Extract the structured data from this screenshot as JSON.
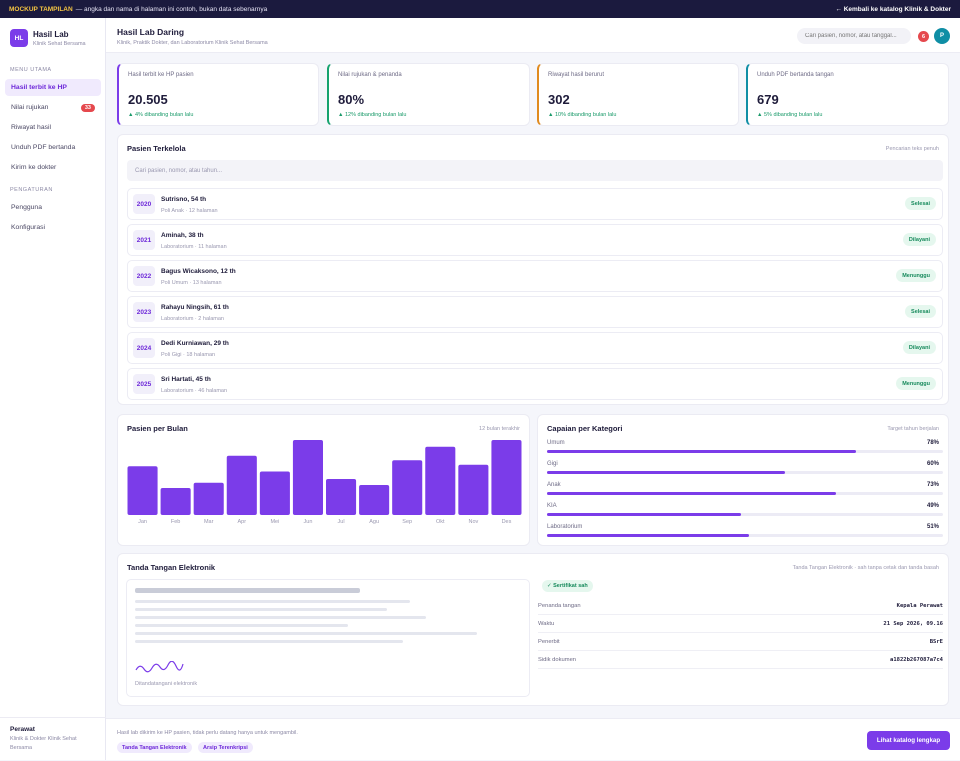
{
  "banner": {
    "tag": "MOCKUP TAMPILAN",
    "text": "— angka dan nama di halaman ini contoh, bukan data sebenarnya",
    "back": "← Kembali ke katalog Klinik & Dokter"
  },
  "brand": {
    "logo": "HL",
    "title": "Hasil Lab",
    "subtitle": "Klinik Sehat Bersama"
  },
  "sidebar": {
    "section_main": "MENU UTAMA",
    "items": [
      {
        "label": "Hasil terbit ke HP",
        "active": true
      },
      {
        "label": "Nilai rujukan",
        "badge": "33"
      },
      {
        "label": "Riwayat hasil"
      },
      {
        "label": "Unduh PDF bertanda"
      },
      {
        "label": "Kirim ke dokter"
      }
    ],
    "section_settings": "PENGATURAN",
    "settings": [
      {
        "label": "Pengguna"
      },
      {
        "label": "Konfigurasi"
      }
    ],
    "footer": {
      "role": "Perawat",
      "org": "Klinik & Dokter Klinik Sehat Bersama"
    }
  },
  "header": {
    "title": "Hasil Lab Daring",
    "subtitle": "Klinik, Praktik Dokter, dan Laboratorium Klinik Sehat Bersama",
    "search_placeholder": "Cari pasien, nomor, atau tanggal...",
    "notif_count": "6",
    "avatar": "P"
  },
  "stats": [
    {
      "label": "Hasil terbit ke HP pasien",
      "value": "20.505",
      "delta": "▲ 4% dibanding bulan lalu",
      "accent": "#7b3ce9"
    },
    {
      "label": "Nilai rujukan & penanda",
      "value": "80%",
      "delta": "▲ 12% dibanding bulan lalu",
      "accent": "#16a36e"
    },
    {
      "label": "Riwayat hasil berurut",
      "value": "302",
      "delta": "▲ 10% dibanding bulan lalu",
      "accent": "#e08a1e"
    },
    {
      "label": "Unduh PDF bertanda tangan",
      "value": "679",
      "delta": "▲ 5% dibanding bulan lalu",
      "accent": "#0f8ea5"
    }
  ],
  "patients": {
    "title": "Pasien Terkelola",
    "note": "Pencarian teks penuh",
    "search_placeholder": "Cari pasien, nomor, atau tahun...",
    "rows": [
      {
        "year": "2020",
        "name": "Sutrisno, 54 th",
        "meta": "Poli Anak · 12 halaman",
        "status": "Selesai"
      },
      {
        "year": "2021",
        "name": "Aminah, 38 th",
        "meta": "Laboratorium · 11 halaman",
        "status": "Dilayani"
      },
      {
        "year": "2022",
        "name": "Bagus Wicaksono, 12 th",
        "meta": "Poli Umum · 13 halaman",
        "status": "Menunggu"
      },
      {
        "year": "2023",
        "name": "Rahayu Ningsih, 61 th",
        "meta": "Laboratorium · 2 halaman",
        "status": "Selesai"
      },
      {
        "year": "2024",
        "name": "Dedi Kurniawan, 29 th",
        "meta": "Poli Gigi · 18 halaman",
        "status": "Dilayani"
      },
      {
        "year": "2025",
        "name": "Sri Hartati, 45 th",
        "meta": "Laboratorium · 46 halaman",
        "status": "Menunggu"
      }
    ]
  },
  "monthly": {
    "title": "Pasien per Bulan",
    "note": "12 bulan terakhir"
  },
  "chart_data": {
    "type": "bar",
    "categories": [
      "Jan",
      "Feb",
      "Mar",
      "Apr",
      "Mei",
      "Jun",
      "Jul",
      "Agu",
      "Sep",
      "Okt",
      "Nov",
      "Des"
    ],
    "values": [
      65,
      36,
      43,
      79,
      58,
      100,
      48,
      40,
      73,
      91,
      67,
      100
    ],
    "ylim": [
      0,
      100
    ],
    "title": "Pasien per Bulan",
    "xlabel": "",
    "ylabel": "",
    "grid": false,
    "color": "#7b3ce9"
  },
  "categories": {
    "title": "Capaian per Kategori",
    "note": "Target tahun berjalan",
    "items": [
      {
        "label": "Umum",
        "pct": 78,
        "text": "78%"
      },
      {
        "label": "Gigi",
        "pct": 60,
        "text": "60%"
      },
      {
        "label": "Anak",
        "pct": 73,
        "text": "73%"
      },
      {
        "label": "KIA",
        "pct": 49,
        "text": "49%"
      },
      {
        "label": "Laboratorium",
        "pct": 51,
        "text": "51%"
      }
    ]
  },
  "signature": {
    "title": "Tanda Tangan Elektronik",
    "note": "Tanda Tangan Elektronik · sah tanpa cetak dan tanda basah",
    "caption": "Ditandatangani elektronik",
    "badge": "✓ Sertifikat sah",
    "fields": [
      {
        "key": "Penanda tangan",
        "value": "Kepala Perawat"
      },
      {
        "key": "Waktu",
        "value": "21 Sep 2026, 09.16"
      },
      {
        "key": "Penerbit",
        "value": "BSrE"
      },
      {
        "key": "Sidik dokumen",
        "value": "a1822b267087a7c4"
      }
    ]
  },
  "footer": {
    "note": "Hasil lab dikirim ke HP pasien, tidak perlu datang hanya untuk mengambil.",
    "chips": [
      "Tanda Tangan Elektronik",
      "Arsip Terenkripsi"
    ],
    "cta": "Lihat katalog lengkap"
  }
}
